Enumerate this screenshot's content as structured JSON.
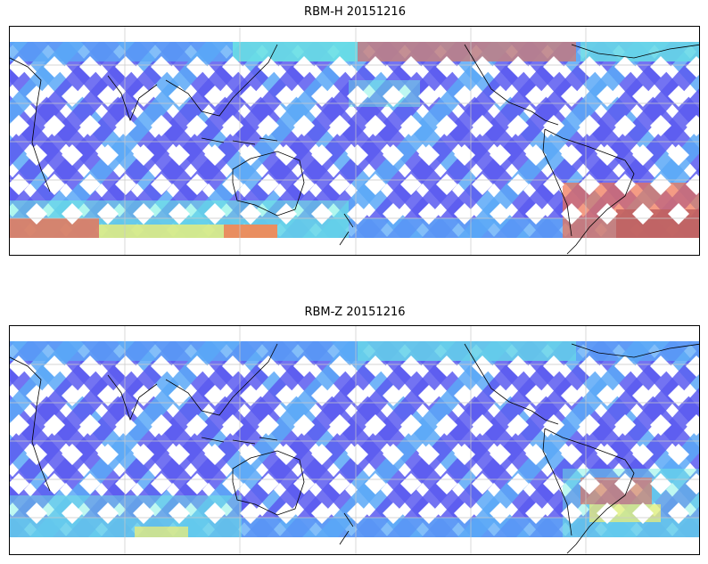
{
  "panels": [
    {
      "id": "h",
      "title": "RBM-H 20151216"
    },
    {
      "id": "z",
      "title": "RBM-Z 20151216"
    }
  ],
  "colors": {
    "low": "#5a5af0",
    "midlow": "#5aa8f7",
    "mid": "#6ef0e0",
    "midhigh": "#f5f070",
    "high": "#f07050",
    "max": "#c06060",
    "coast": "#000000",
    "grid": "#c8c8c8"
  },
  "map": {
    "projection": "equirectangular, 90E-centered",
    "grid": true
  }
}
